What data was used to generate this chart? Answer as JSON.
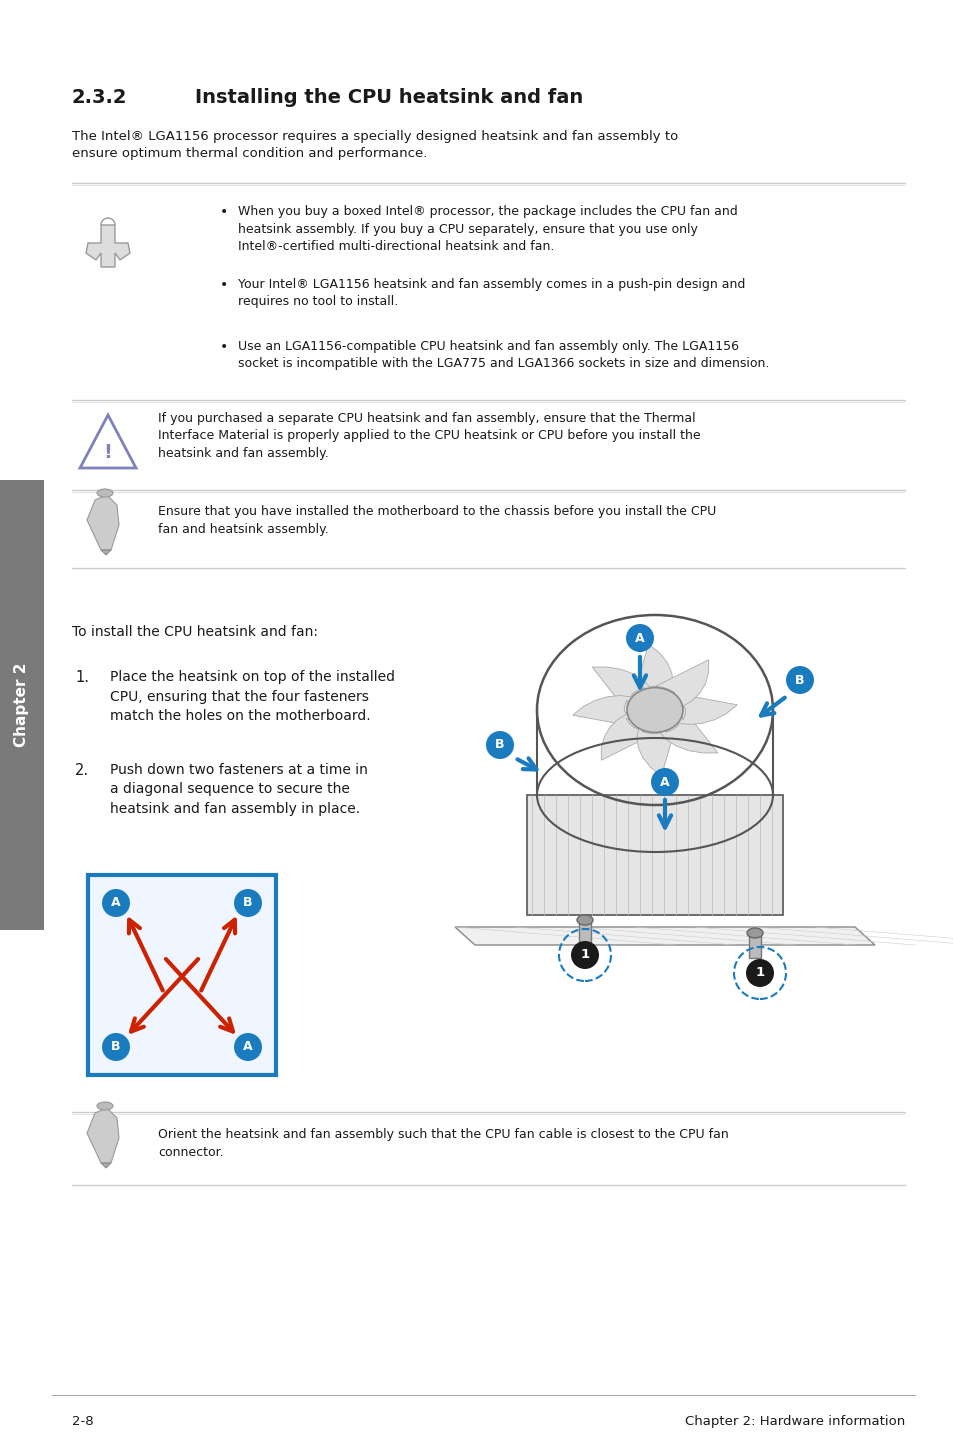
{
  "title_num": "2.3.2",
  "title_text": "Installing the CPU heatsink and fan",
  "intro_text": "The Intel® LGA1156 processor requires a specially designed heatsink and fan assembly to\nensure optimum thermal condition and performance.",
  "note_bullets": [
    "When you buy a boxed Intel® processor, the package includes the CPU fan and\nheatsink assembly. If you buy a CPU separately, ensure that you use only\nIntel®-certified multi-directional heatsink and fan.",
    "Your Intel® LGA1156 heatsink and fan assembly comes in a push-pin design and\nrequires no tool to install.",
    "Use an LGA1156-compatible CPU heatsink and fan assembly only. The LGA1156\nsocket is incompatible with the LGA775 and LGA1366 sockets in size and dimension."
  ],
  "warning_text": "If you purchased a separate CPU heatsink and fan assembly, ensure that the Thermal\nInterface Material is properly applied to the CPU heatsink or CPU before you install the\nheatsink and fan assembly.",
  "note2_text": "Ensure that you have installed the motherboard to the chassis before you install the CPU\nfan and heatsink assembly.",
  "steps_intro": "To install the CPU heatsink and fan:",
  "step1": "Place the heatsink on top of the installed\nCPU, ensuring that the four fasteners\nmatch the holes on the motherboard.",
  "step2": "Push down two fasteners at a time in\na diagonal sequence to secure the\nheatsink and fan assembly in place.",
  "note3_text": "Orient the heatsink and fan assembly such that the CPU fan cable is closest to the CPU fan\nconnector.",
  "footer_left": "2-8",
  "footer_right": "Chapter 2: Hardware information",
  "bg_color": "#ffffff",
  "text_color": "#1a1a1a",
  "sidebar_bg": "#7a7a7a",
  "blue_color": "#1a7bbf",
  "red_color": "#cc2200",
  "line_color": "#cccccc",
  "warn_tri_color": "#8080bb",
  "icon_gray": "#aaaaaa",
  "fan_edge": "#555555",
  "fan_fill": "#e8e8e8",
  "hs_fill": "#dddddd"
}
